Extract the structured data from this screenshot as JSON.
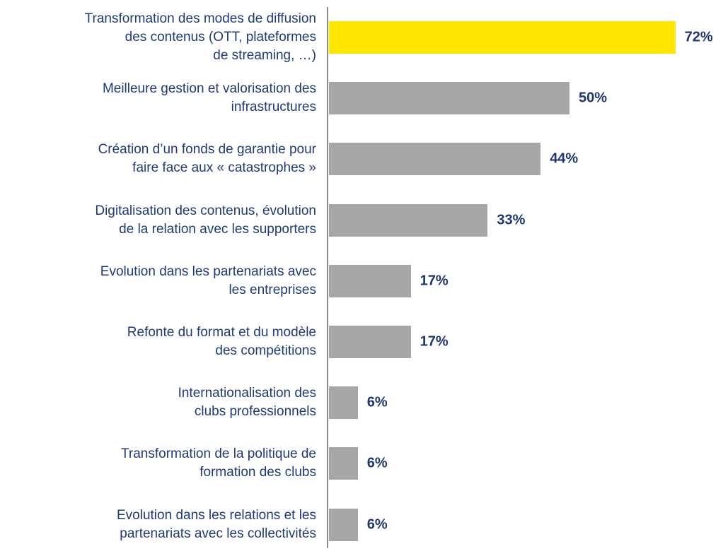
{
  "chart_data": {
    "type": "bar",
    "orientation": "horizontal",
    "categories": [
      "Transformation des modes de diffusion\ndes contenus (OTT, plateformes\nde streaming, …)",
      "Meilleure gestion et valorisation des\ninfrastructures",
      "Création d’un fonds de garantie pour\nfaire face aux « catastrophes »",
      "Digitalisation des contenus, évolution\nde la relation avec les supporters",
      "Evolution dans les partenariats avec\nles entreprises",
      "Refonte du format et du modèle\ndes compétitions",
      "Internationalisation des\nclubs professionnels",
      "Transformation de la politique de\nformation des clubs",
      "Evolution dans les relations et les\npartenariats avec les collectivités"
    ],
    "values": [
      72,
      50,
      44,
      33,
      17,
      17,
      6,
      6,
      6
    ],
    "value_labels": [
      "72%",
      "50%",
      "44%",
      "33%",
      "17%",
      "17%",
      "6%",
      "6%",
      "6%"
    ],
    "colors": [
      "#FFE600",
      "#A6A6A6",
      "#A6A6A6",
      "#A6A6A6",
      "#A6A6A6",
      "#A6A6A6",
      "#A6A6A6",
      "#A6A6A6",
      "#A6A6A6"
    ]
  }
}
